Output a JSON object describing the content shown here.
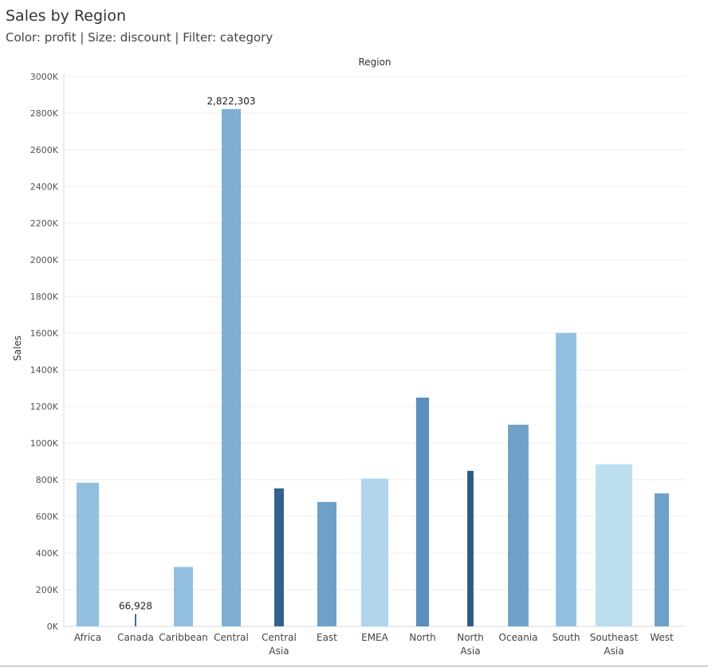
{
  "header": {
    "title": "Sales by Region",
    "subtitle": "Color: profit | Size: discount | Filter: category"
  },
  "chart_data": {
    "type": "bar",
    "title": "Sales by Region",
    "xlabel": "Region",
    "ylabel": "Sales",
    "ylim": [
      0,
      3000000
    ],
    "yticks": [
      0,
      200000,
      400000,
      600000,
      800000,
      1000000,
      1200000,
      1400000,
      1600000,
      1800000,
      2000000,
      2200000,
      2400000,
      2600000,
      2800000,
      3000000
    ],
    "ytick_labels": [
      "0K",
      "200K",
      "400K",
      "600K",
      "800K",
      "1000K",
      "1200K",
      "1400K",
      "1600K",
      "1800K",
      "2000K",
      "2200K",
      "2400K",
      "2600K",
      "2800K",
      "3000K"
    ],
    "grid": true,
    "categories": [
      "Africa",
      "Canada",
      "Caribbean",
      "Central",
      "Central Asia",
      "East",
      "EMEA",
      "North",
      "North Asia",
      "Oceania",
      "South",
      "Southeast Asia",
      "West"
    ],
    "values": [
      783773,
      66928,
      324281,
      2822303,
      752827,
      678781,
      806161,
      1248166,
      848310,
      1100185,
      1600907,
      884423,
      725458
    ],
    "data_labels": [
      {
        "category": "Central",
        "text": "2,822,303"
      },
      {
        "category": "Canada",
        "text": "66,928"
      }
    ],
    "bar_width_fraction": [
      0.47,
      0.03,
      0.4,
      0.4,
      0.2,
      0.4,
      0.57,
      0.27,
      0.13,
      0.43,
      0.43,
      0.77,
      0.3
    ],
    "bar_colors": [
      "#93bfdf",
      "#3a6f9c",
      "#93bfdf",
      "#7eaed4",
      "#34618e",
      "#6fa1c8",
      "#b1d6ec",
      "#5a8ebd",
      "#2d5a85",
      "#6fa1c8",
      "#93bfdf",
      "#bcdff0",
      "#6fa1c8"
    ]
  }
}
